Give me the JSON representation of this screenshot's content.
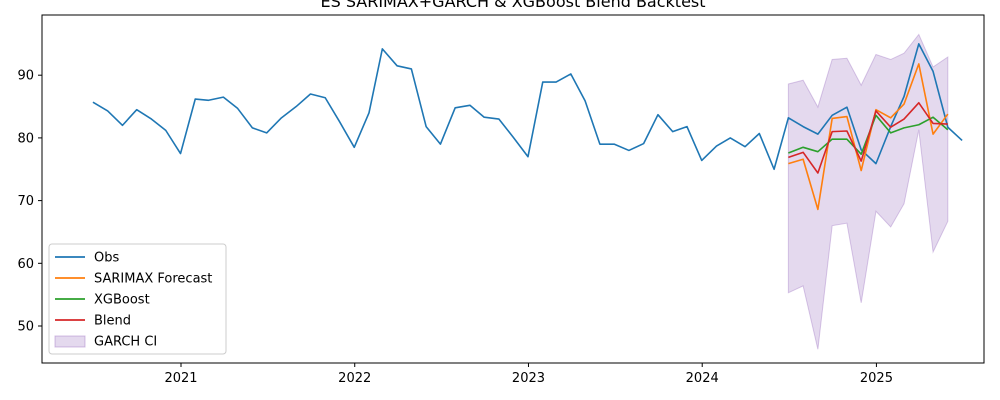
{
  "chart_data": {
    "type": "line",
    "title": "ES SARIMAX+GARCH & XGBoost Blend Backtest",
    "xlabel": "",
    "ylabel": "",
    "x_range": [
      "2020-03-15",
      "2025-08-15"
    ],
    "ylim": [
      44.1,
      99.6
    ],
    "x_ticks": [
      {
        "date": "2021-01-01",
        "label": "2021"
      },
      {
        "date": "2022-01-01",
        "label": "2022"
      },
      {
        "date": "2023-01-01",
        "label": "2023"
      },
      {
        "date": "2024-01-01",
        "label": "2024"
      },
      {
        "date": "2025-01-01",
        "label": "2025"
      }
    ],
    "y_ticks": [
      50,
      60,
      70,
      80,
      90
    ],
    "grid": false,
    "legend_position": "lower left",
    "legend": [
      {
        "label": "Obs",
        "kind": "line",
        "color": "#1f77b4"
      },
      {
        "label": "SARIMAX Forecast",
        "kind": "line",
        "color": "#ff7f0e"
      },
      {
        "label": "XGBoost",
        "kind": "line",
        "color": "#2ca02c"
      },
      {
        "label": "Blend",
        "kind": "line",
        "color": "#d62728"
      },
      {
        "label": "GARCH CI",
        "kind": "band",
        "color": "#9467bd"
      }
    ],
    "series": [
      {
        "name": "Obs",
        "color": "#1f77b4",
        "x": [
          "2020-06-30",
          "2020-07-31",
          "2020-08-31",
          "2020-09-30",
          "2020-10-31",
          "2020-11-30",
          "2020-12-31",
          "2021-01-31",
          "2021-02-28",
          "2021-03-31",
          "2021-04-30",
          "2021-05-31",
          "2021-06-30",
          "2021-07-31",
          "2021-08-31",
          "2021-09-30",
          "2021-10-31",
          "2021-11-30",
          "2021-12-31",
          "2022-01-31",
          "2022-02-28",
          "2022-03-31",
          "2022-04-30",
          "2022-05-31",
          "2022-06-30",
          "2022-07-31",
          "2022-08-31",
          "2022-09-30",
          "2022-10-31",
          "2022-11-30",
          "2022-12-31",
          "2023-01-31",
          "2023-02-28",
          "2023-03-31",
          "2023-04-30",
          "2023-05-31",
          "2023-06-30",
          "2023-07-31",
          "2023-08-31",
          "2023-09-30",
          "2023-10-31",
          "2023-11-30",
          "2023-12-31",
          "2024-01-31",
          "2024-02-29",
          "2024-03-31",
          "2024-04-30",
          "2024-05-31",
          "2024-06-30",
          "2024-07-31",
          "2024-08-31",
          "2024-09-30",
          "2024-10-31",
          "2024-11-30",
          "2024-12-31",
          "2025-01-31",
          "2025-02-28",
          "2025-03-31",
          "2025-04-30",
          "2025-05-31",
          "2025-06-30"
        ],
        "values": [
          85.7,
          84.3,
          82.0,
          84.5,
          83.0,
          81.2,
          77.5,
          86.2,
          86.0,
          86.5,
          84.7,
          81.6,
          80.8,
          83.2,
          85.0,
          87.0,
          86.4,
          82.6,
          78.5,
          84.0,
          94.2,
          91.5,
          91.0,
          81.8,
          79.0,
          84.8,
          85.2,
          83.3,
          83.0,
          80.1,
          77.0,
          88.9,
          88.9,
          90.2,
          85.9,
          79.0,
          79.0,
          78.0,
          79.1,
          83.7,
          81.0,
          81.8,
          76.4,
          78.7,
          80.0,
          78.6,
          80.7,
          75.0,
          83.2,
          81.8,
          80.6,
          83.6,
          84.9,
          78.1,
          75.9,
          81.8,
          86.6,
          95.0,
          90.6,
          81.7,
          79.6
        ]
      },
      {
        "name": "SARIMAX Forecast",
        "color": "#ff7f0e",
        "x": [
          "2024-06-30",
          "2024-07-31",
          "2024-08-31",
          "2024-09-30",
          "2024-10-31",
          "2024-11-30",
          "2024-12-31",
          "2025-01-31",
          "2025-02-28",
          "2025-03-31",
          "2025-04-30",
          "2025-05-31",
          "2025-06-30"
        ],
        "values": [
          75.9,
          76.6,
          68.6,
          83.1,
          83.4,
          74.8,
          84.5,
          83.2,
          85.4,
          91.8,
          80.6,
          83.8,
          null
        ]
      },
      {
        "name": "XGBoost",
        "color": "#2ca02c",
        "x": [
          "2024-06-30",
          "2024-07-31",
          "2024-08-31",
          "2024-09-30",
          "2024-10-31",
          "2024-11-30",
          "2024-12-31",
          "2025-01-31",
          "2025-02-28",
          "2025-03-31",
          "2025-04-30",
          "2025-05-31",
          "2025-06-30"
        ],
        "values": [
          77.6,
          78.5,
          77.8,
          79.8,
          79.8,
          77.4,
          83.6,
          80.8,
          81.6,
          82.1,
          83.3,
          81.3,
          null
        ]
      },
      {
        "name": "Blend",
        "color": "#d62728",
        "x": [
          "2024-06-30",
          "2024-07-31",
          "2024-08-31",
          "2024-09-30",
          "2024-10-31",
          "2024-11-30",
          "2024-12-31",
          "2025-01-31",
          "2025-02-28",
          "2025-03-31",
          "2025-04-30",
          "2025-05-31",
          "2025-06-30"
        ],
        "values": [
          76.9,
          77.7,
          74.4,
          81.0,
          81.1,
          76.3,
          84.3,
          81.7,
          83.0,
          85.6,
          82.3,
          82.2,
          null
        ]
      }
    ],
    "band": {
      "name": "GARCH CI",
      "color": "#9467bd",
      "x": [
        "2024-06-30",
        "2024-07-31",
        "2024-08-31",
        "2024-09-30",
        "2024-10-31",
        "2024-11-30",
        "2024-12-31",
        "2025-01-31",
        "2025-02-28",
        "2025-03-31",
        "2025-04-30",
        "2025-05-31"
      ],
      "upper": [
        88.6,
        89.2,
        84.9,
        92.5,
        92.7,
        88.4,
        93.3,
        92.5,
        93.5,
        96.5,
        91.3,
        92.9
      ],
      "lower": [
        55.3,
        56.4,
        46.3,
        66.0,
        66.4,
        53.7,
        68.3,
        65.8,
        69.5,
        81.3,
        61.8,
        66.7
      ]
    }
  }
}
